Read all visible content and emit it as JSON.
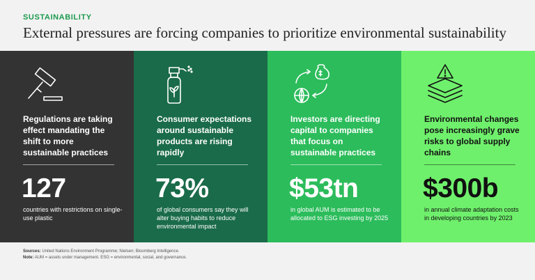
{
  "header": {
    "eyebrow": "SUSTAINABILITY",
    "title": "External pressures are forcing companies to prioritize environmental sustainability"
  },
  "panels": [
    {
      "icon": "gavel-icon",
      "description": "Regulations are taking effect mandating the shift to more sustainable practices",
      "stat": "127",
      "caption": "countries with restrictions on single-use plastic"
    },
    {
      "icon": "spray-bottle-icon",
      "description": "Consumer expectations around sustainable products are rising rapidly",
      "stat": "73%",
      "caption": "of global consumers say they will alter buying habits to reduce environmental impact"
    },
    {
      "icon": "money-cycle-icon",
      "description": "Investors are directing capital to companies that focus on sustainable practices",
      "stat": "$53tn",
      "caption": "in global AUM is estimated to be allocated to ESG investing by 2025"
    },
    {
      "icon": "layers-warning-icon",
      "description": "Environmental changes pose increasingly grave risks to global supply chains",
      "stat": "$300b",
      "caption": "in annual climate adaptation costs in developing countries by 2023"
    }
  ],
  "footer": {
    "sources_label": "Sources:",
    "sources": "United Nations Environment Programme; Nielsen; Bloomberg Intelligence.",
    "note_label": "Note:",
    "note": "AUM = assets under management. ESG = environmental, social, and governance."
  },
  "colors": {
    "accent": "#1d9a4e",
    "panel1": "#333333",
    "panel2": "#1a6b49",
    "panel3": "#2cbc5b",
    "panel4": "#6ff06c"
  }
}
